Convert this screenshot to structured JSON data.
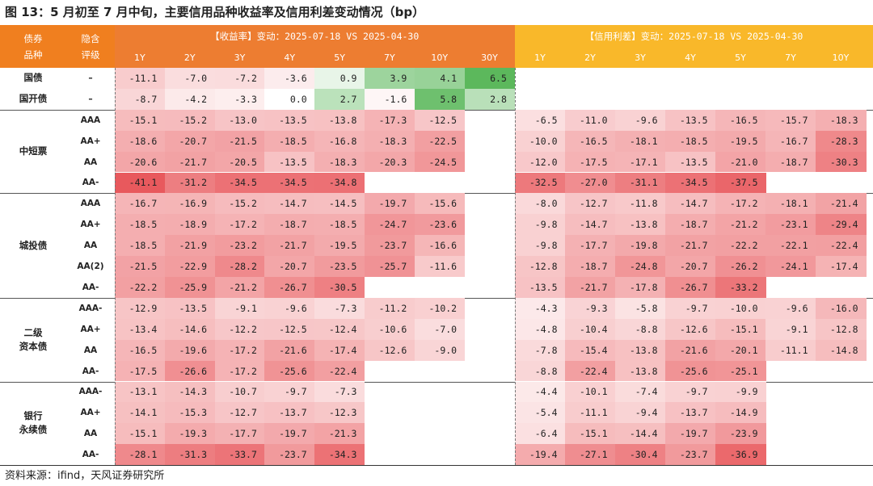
{
  "figure": {
    "title": "图 13：5 月初至 7 月中旬，主要信用品种收益率及信用利差变动情况（bp）",
    "source": "资料来源：ifind，天风证券研究所"
  },
  "header": {
    "bond_type_label": "债券品种",
    "rating_label": "隐含评级",
    "yield_title": "【收益率】变动：2025-07-18 VS 2025-04-30",
    "spread_title": "【信用利差】变动：2025-07-18 VS 2025-04-30",
    "yield_tenors": [
      "1Y",
      "2Y",
      "3Y",
      "4Y",
      "5Y",
      "7Y",
      "10Y",
      "30Y"
    ],
    "spread_tenors": [
      "1Y",
      "2Y",
      "3Y",
      "4Y",
      "5Y",
      "7Y",
      "10Y"
    ]
  },
  "colors": {
    "left_header": "#F07F1F",
    "yield_header": "#ED7D31",
    "spread_header": "#F9B82A",
    "negative_strong": "#E8565A",
    "positive_strong": "#5CB85C"
  },
  "groups": [
    {
      "name": "国债",
      "rows": [
        {
          "rating": "–",
          "yield": [
            -11.1,
            -7.0,
            -7.2,
            -3.6,
            0.9,
            3.9,
            4.1,
            6.5
          ],
          "spread": [
            null,
            null,
            null,
            null,
            null,
            null,
            null
          ]
        }
      ]
    },
    {
      "name": "国开债",
      "rows": [
        {
          "rating": "–",
          "yield": [
            -8.7,
            -4.2,
            -3.3,
            0.0,
            2.7,
            -1.6,
            5.8,
            2.8
          ],
          "spread": [
            null,
            null,
            null,
            null,
            null,
            null,
            null
          ]
        }
      ]
    },
    {
      "name": "中短票",
      "rows": [
        {
          "rating": "AAA",
          "yield": [
            -15.1,
            -15.2,
            -13.0,
            -13.5,
            -13.8,
            -17.3,
            -12.5,
            null
          ],
          "spread": [
            -6.5,
            -11.0,
            -9.6,
            -13.5,
            -16.5,
            -15.7,
            -18.3
          ]
        },
        {
          "rating": "AA+",
          "yield": [
            -18.6,
            -20.7,
            -21.5,
            -18.5,
            -16.8,
            -18.3,
            -22.5,
            null
          ],
          "spread": [
            -10.0,
            -16.5,
            -18.1,
            -18.5,
            -19.5,
            -16.7,
            -28.3
          ]
        },
        {
          "rating": "AA",
          "yield": [
            -20.6,
            -21.7,
            -20.5,
            -13.5,
            -18.3,
            -20.3,
            -24.5,
            null
          ],
          "spread": [
            -12.0,
            -17.5,
            -17.1,
            -13.5,
            -21.0,
            -18.7,
            -30.3
          ]
        },
        {
          "rating": "AA-",
          "yield": [
            -41.1,
            -31.2,
            -34.5,
            -34.5,
            -34.8,
            null,
            null,
            null
          ],
          "spread": [
            -32.5,
            -27.0,
            -31.1,
            -34.5,
            -37.5,
            null,
            null
          ]
        }
      ]
    },
    {
      "name": "城投债",
      "rows": [
        {
          "rating": "AAA",
          "yield": [
            -16.7,
            -16.9,
            -15.2,
            -14.7,
            -14.5,
            -19.7,
            -15.6,
            null
          ],
          "spread": [
            -8.0,
            -12.7,
            -11.8,
            -14.7,
            -17.2,
            -18.1,
            -21.4
          ]
        },
        {
          "rating": "AA+",
          "yield": [
            -18.5,
            -18.9,
            -17.2,
            -18.7,
            -18.5,
            -24.7,
            -23.6,
            null
          ],
          "spread": [
            -9.8,
            -14.7,
            -13.8,
            -18.7,
            -21.2,
            -23.1,
            -29.4
          ]
        },
        {
          "rating": "AA",
          "yield": [
            -18.5,
            -21.9,
            -23.2,
            -21.7,
            -19.5,
            -23.7,
            -16.6,
            null
          ],
          "spread": [
            -9.8,
            -17.7,
            -19.8,
            -21.7,
            -22.2,
            -22.1,
            -22.4
          ]
        },
        {
          "rating": "AA(2)",
          "yield": [
            -21.5,
            -22.9,
            -28.2,
            -20.7,
            -23.5,
            -25.7,
            -11.6,
            null
          ],
          "spread": [
            -12.8,
            -18.7,
            -24.8,
            -20.7,
            -26.2,
            -24.1,
            -17.4
          ]
        },
        {
          "rating": "AA-",
          "yield": [
            -22.2,
            -25.9,
            -21.2,
            -26.7,
            -30.5,
            null,
            null,
            null
          ],
          "spread": [
            -13.5,
            -21.7,
            -17.8,
            -26.7,
            -33.2,
            null,
            null
          ]
        }
      ]
    },
    {
      "name": "二级资本债",
      "name_lines": [
        "二级",
        "资本债"
      ],
      "rows": [
        {
          "rating": "AAA-",
          "yield": [
            -12.9,
            -13.5,
            -9.1,
            -9.6,
            -7.3,
            -11.2,
            -10.2,
            null
          ],
          "spread": [
            -4.3,
            -9.3,
            -5.8,
            -9.7,
            -10.0,
            -9.6,
            -16.0
          ]
        },
        {
          "rating": "AA+",
          "yield": [
            -13.4,
            -14.6,
            -12.2,
            -12.5,
            -12.4,
            -10.6,
            -7.0,
            null
          ],
          "spread": [
            -4.8,
            -10.4,
            -8.8,
            -12.6,
            -15.1,
            -9.1,
            -12.8
          ]
        },
        {
          "rating": "AA",
          "yield": [
            -16.5,
            -19.6,
            -17.2,
            -21.6,
            -17.4,
            -12.6,
            -9.0,
            null
          ],
          "spread": [
            -7.8,
            -15.4,
            -13.8,
            -21.6,
            -20.1,
            -11.1,
            -14.8
          ]
        },
        {
          "rating": "AA-",
          "yield": [
            -17.5,
            -26.6,
            -17.2,
            -25.6,
            -22.4,
            null,
            null,
            null
          ],
          "spread": [
            -8.8,
            -22.4,
            -13.8,
            -25.6,
            -25.1,
            null,
            null
          ]
        }
      ]
    },
    {
      "name": "银行永续债",
      "name_lines": [
        "银行",
        "永续债"
      ],
      "rows": [
        {
          "rating": "AAA-",
          "yield": [
            -13.1,
            -14.3,
            -10.7,
            -9.7,
            -7.3,
            null,
            null,
            null
          ],
          "spread": [
            -4.4,
            -10.1,
            -7.4,
            -9.7,
            -9.9,
            null,
            null
          ]
        },
        {
          "rating": "AA+",
          "yield": [
            -14.1,
            -15.3,
            -12.7,
            -13.7,
            -12.3,
            null,
            null,
            null
          ],
          "spread": [
            -5.4,
            -11.1,
            -9.4,
            -13.7,
            -14.9,
            null,
            null
          ]
        },
        {
          "rating": "AA",
          "yield": [
            -15.1,
            -19.3,
            -17.7,
            -19.7,
            -21.3,
            null,
            null,
            null
          ],
          "spread": [
            -6.4,
            -15.1,
            -14.4,
            -19.7,
            -23.9,
            null,
            null
          ]
        },
        {
          "rating": "AA-",
          "yield": [
            -28.1,
            -31.3,
            -33.7,
            -23.7,
            -34.3,
            null,
            null,
            null
          ],
          "spread": [
            -19.4,
            -27.1,
            -30.4,
            -23.7,
            -36.9,
            null,
            null
          ]
        }
      ]
    }
  ]
}
